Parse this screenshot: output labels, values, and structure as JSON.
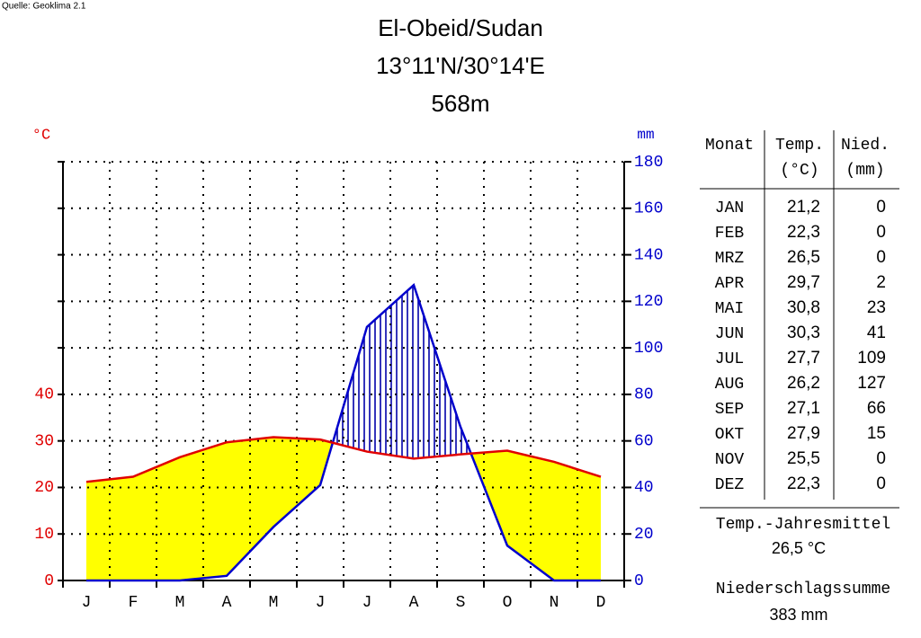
{
  "chart_data": {
    "type": "climate",
    "source": "Quelle: Geoklima 2.1",
    "title": "El-Obeid/Sudan",
    "coordinates": "13°11'N/30°14'E",
    "elevation": "568m",
    "ylabel": "°C",
    "y2label": "mm",
    "categories": [
      "J",
      "F",
      "M",
      "A",
      "M",
      "J",
      "J",
      "A",
      "S",
      "O",
      "N",
      "D"
    ],
    "ylim": [
      0,
      90
    ],
    "yticks": [
      0,
      10,
      20,
      30,
      40
    ],
    "y2lim": [
      0,
      180
    ],
    "y2ticks": [
      0,
      20,
      40,
      60,
      80,
      100,
      120,
      140,
      160,
      180
    ],
    "grid": true,
    "fill_dry": "#ffff00",
    "series": [
      {
        "name": "Temp.",
        "unit": "(°C)",
        "color": "#e00000",
        "values": [
          21.2,
          22.3,
          26.5,
          29.7,
          30.8,
          30.3,
          27.7,
          26.2,
          27.1,
          27.9,
          25.5,
          22.3
        ],
        "value_labels": [
          "21,2",
          "22,3",
          "26,5",
          "29,7",
          "30,8",
          "30,3",
          "27,7",
          "26,2",
          "27,1",
          "27,9",
          "25,5",
          "22,3"
        ]
      },
      {
        "name": "Nied.",
        "unit": "(mm)",
        "color": "#0000cc",
        "axis": "y2",
        "values": [
          0,
          0,
          0,
          2,
          23,
          41,
          109,
          127,
          66,
          15,
          0,
          0
        ]
      }
    ],
    "table": {
      "month_header": "Monat",
      "months": [
        "JAN",
        "FEB",
        "MRZ",
        "APR",
        "MAI",
        "JUN",
        "JUL",
        "AUG",
        "SEP",
        "OKT",
        "NOV",
        "DEZ"
      ],
      "mean_label": "Temp.-Jahresmittel",
      "mean": "26,5 °C",
      "sum_label": "Niederschlagssumme",
      "sum": "383 mm"
    }
  }
}
